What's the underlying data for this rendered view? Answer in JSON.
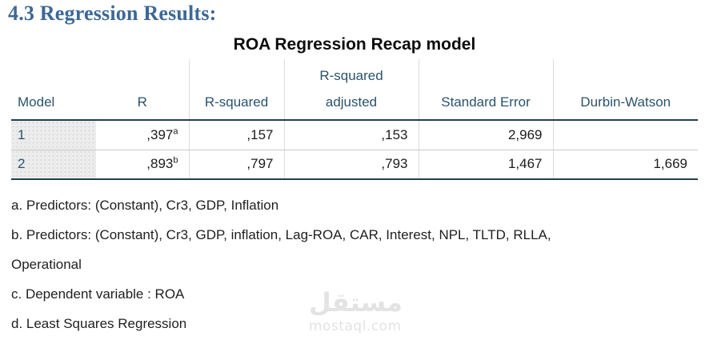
{
  "page": {
    "heading": "4.3 Regression Results:",
    "table_title": "ROA Regression Recap model"
  },
  "table": {
    "columns": [
      {
        "lines": [
          "Model"
        ]
      },
      {
        "lines": [
          "R"
        ]
      },
      {
        "lines": [
          "R-squared"
        ]
      },
      {
        "lines": [
          "R-squared",
          "adjusted"
        ]
      },
      {
        "lines": [
          "Standard Error"
        ]
      },
      {
        "lines": [
          "Durbin-Watson"
        ]
      }
    ],
    "rows": [
      {
        "model": "1",
        "r": ",397",
        "r_sup": "a",
        "r_squared": ",157",
        "r_squared_adjusted": ",153",
        "standard_error": "2,969",
        "durbin_watson": ""
      },
      {
        "model": "2",
        "r": ",893",
        "r_sup": "b",
        "r_squared": ",797",
        "r_squared_adjusted": ",793",
        "standard_error": "1,467",
        "durbin_watson": "1,669"
      }
    ]
  },
  "footnotes": [
    {
      "lines": [
        "a. Predictors: (Constant), Cr3, GDP, Inflation"
      ]
    },
    {
      "lines": [
        "b. Predictors: (Constant), Cr3, GDP, inflation, Lag-ROA, CAR, Interest, NPL, TLTD, RLLA,",
        "Operational"
      ]
    },
    {
      "lines": [
        "c. Dependent variable : ROA"
      ]
    },
    {
      "lines": [
        "d. Least Squares Regression"
      ]
    }
  ],
  "watermark": {
    "logo": "مستقل",
    "domain": "mostaql.com"
  },
  "colors": {
    "heading_blue": "#3d6896",
    "table_header_text": "#2b536b",
    "dark_rule": "#223f52",
    "light_gridline": "#dcdcdc",
    "row_divider": "#c9c9c9",
    "model_cell_bg": "#ececec",
    "watermark_gray": "#e3e3e3"
  }
}
